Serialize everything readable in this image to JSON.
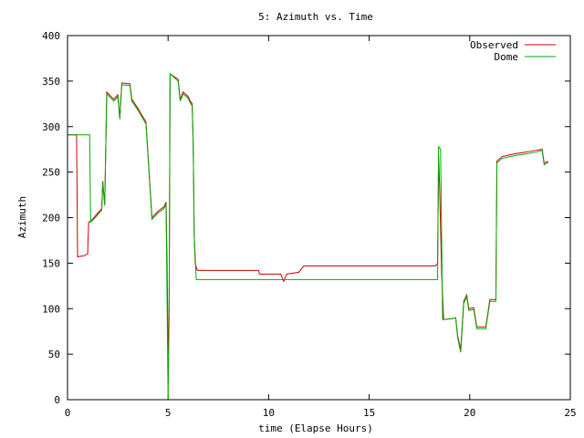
{
  "chart_data": {
    "type": "line",
    "title": "5: Azimuth vs. Time",
    "xlabel": "time (Elapse Hours)",
    "ylabel": "Azimuth",
    "xlim": [
      0,
      25
    ],
    "ylim": [
      0,
      400
    ],
    "xticks": [
      0,
      5,
      10,
      15,
      20,
      25
    ],
    "yticks": [
      0,
      50,
      100,
      150,
      200,
      250,
      300,
      350,
      400
    ],
    "legend": "upper right",
    "series": [
      {
        "name": "Observed",
        "color": "#cc0000",
        "x": [
          0,
          0.45,
          0.5,
          0.8,
          1.0,
          1.05,
          1.2,
          1.5,
          1.7,
          1.75,
          1.85,
          1.95,
          2.3,
          2.5,
          2.6,
          2.7,
          3.1,
          3.2,
          3.5,
          3.9,
          4.2,
          4.5,
          4.8,
          4.9,
          4.95,
          5.0,
          5.05,
          5.1,
          5.5,
          5.6,
          5.75,
          6.0,
          6.1,
          6.2,
          6.25,
          6.3,
          6.35,
          6.45,
          9.5,
          9.55,
          10.6,
          10.75,
          10.9,
          11.5,
          11.75,
          18.3,
          18.4,
          18.45,
          18.5,
          18.6,
          18.7,
          19.1,
          19.3,
          19.4,
          19.55,
          19.7,
          19.85,
          19.95,
          20.2,
          20.35,
          20.8,
          21.0,
          21.3,
          21.35,
          21.6,
          22.2,
          22.8,
          23.3,
          23.6,
          23.7,
          23.9
        ],
        "values": [
          291,
          291,
          157,
          158,
          160,
          195,
          197,
          205,
          210,
          240,
          215,
          338,
          330,
          335,
          310,
          348,
          347,
          330,
          320,
          305,
          200,
          207,
          212,
          217,
          150,
          50,
          90,
          358,
          352,
          330,
          338,
          333,
          328,
          325,
          280,
          180,
          150,
          142,
          142,
          138,
          138,
          130,
          138,
          140,
          147,
          147,
          150,
          268,
          235,
          140,
          88,
          89,
          90,
          70,
          55,
          108,
          115,
          100,
          101,
          80,
          80,
          110,
          110,
          262,
          267,
          270,
          272,
          274,
          275,
          260,
          262
        ]
      },
      {
        "name": "Dome",
        "color": "#00aa00",
        "x": [
          0,
          1.1,
          1.15,
          1.5,
          1.7,
          1.75,
          1.85,
          1.95,
          2.3,
          2.5,
          2.6,
          2.7,
          3.1,
          3.2,
          3.5,
          3.9,
          4.2,
          4.5,
          4.8,
          4.9,
          5.0,
          5.05,
          5.1,
          5.5,
          5.6,
          5.75,
          6.0,
          6.1,
          6.2,
          6.25,
          6.3,
          6.4,
          18.4,
          18.45,
          18.55,
          18.65,
          19.1,
          19.3,
          19.4,
          19.55,
          19.7,
          19.85,
          19.95,
          20.2,
          20.35,
          20.8,
          21.0,
          21.3,
          21.35,
          21.6,
          22.2,
          22.8,
          23.3,
          23.6,
          23.7,
          23.9
        ],
        "values": [
          291,
          291,
          195,
          203,
          208,
          238,
          213,
          336,
          328,
          333,
          308,
          346,
          345,
          328,
          318,
          303,
          198,
          205,
          210,
          215,
          0,
          90,
          358,
          350,
          328,
          336,
          331,
          326,
          323,
          278,
          180,
          132,
          132,
          278,
          275,
          88,
          89,
          90,
          68,
          52,
          106,
          113,
          98,
          99,
          78,
          78,
          108,
          108,
          260,
          265,
          268,
          270,
          272,
          274,
          258,
          261
        ]
      }
    ]
  }
}
